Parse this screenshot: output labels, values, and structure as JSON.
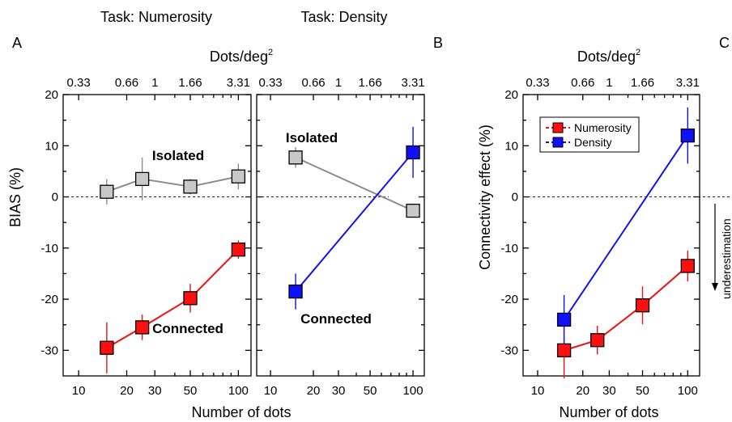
{
  "task_titles": [
    {
      "text": "Task: Numerosity",
      "color": "#ee1111"
    },
    {
      "text": "Task: Density",
      "color": "#1111ee"
    }
  ],
  "panel_letters": [
    "A",
    "B",
    "C"
  ],
  "top_axis_title": "Dots/deg",
  "top_axis_title_sup": "2",
  "top_ticks": [
    {
      "label": "0.33",
      "x": 10
    },
    {
      "label": "0.66",
      "x": 20
    },
    {
      "label": "1",
      "x": 30
    },
    {
      "label": "1.66",
      "x": 50
    },
    {
      "label": "3.31",
      "x": 100
    }
  ],
  "bottom_ticks": [
    {
      "label": "10",
      "x": 10
    },
    {
      "label": "20",
      "x": 20
    },
    {
      "label": "30",
      "x": 30
    },
    {
      "label": "50",
      "x": 50
    },
    {
      "label": "100",
      "x": 100
    }
  ],
  "y_ticks": [
    "20",
    "10",
    "0",
    "-10",
    "-20",
    "-30"
  ],
  "annotation_side": "underestimation",
  "chart_data": [
    {
      "type": "line",
      "panel": "A-left",
      "xscale": "log",
      "xlim": [
        8,
        120
      ],
      "ylim": [
        -35,
        20
      ],
      "ylabel": "BIAS (%)",
      "xlabel": "Number of dots",
      "series": [
        {
          "name": "Isolated",
          "color": "#8c8c8c",
          "fill": "#c8c8c8",
          "x": [
            15,
            25,
            50,
            100
          ],
          "y": [
            1,
            3.5,
            2,
            4
          ],
          "err": [
            2.5,
            4.2,
            1.5,
            2.5
          ]
        },
        {
          "name": "Connected",
          "color": "#ee1111",
          "fill": "#ff1010",
          "x": [
            15,
            25,
            50,
            100
          ],
          "y": [
            -29.5,
            -25.5,
            -19.8,
            -10.3
          ],
          "err": [
            5,
            2.5,
            2.8,
            1.8
          ]
        }
      ]
    },
    {
      "type": "line",
      "panel": "A-right",
      "xscale": "log",
      "xlim": [
        8,
        120
      ],
      "ylim": [
        -35,
        20
      ],
      "xlabel": "Number of dots",
      "series": [
        {
          "name": "Isolated",
          "color": "#8c8c8c",
          "fill": "#c8c8c8",
          "x": [
            15,
            100
          ],
          "y": [
            7.7,
            -2.7
          ],
          "err": [
            2,
            1.2
          ]
        },
        {
          "name": "Connected",
          "color": "#1111ee",
          "fill": "#1010ff",
          "x": [
            15,
            100
          ],
          "y": [
            -18.5,
            8.7
          ],
          "err": [
            3.5,
            5
          ]
        }
      ]
    },
    {
      "type": "line",
      "panel": "B",
      "xscale": "log",
      "xlim": [
        8,
        120
      ],
      "ylim": [
        -35,
        20
      ],
      "ylabel": "Connectivity effect (%)",
      "xlabel": "Number of dots",
      "legend": "top-left",
      "series": [
        {
          "name": "Numerosity",
          "color": "#ee1111",
          "fill": "#ff1010",
          "x": [
            15,
            25,
            50,
            100
          ],
          "y": [
            -30,
            -28,
            -21.2,
            -13.5
          ],
          "err": [
            5.5,
            2.8,
            3.7,
            3
          ]
        },
        {
          "name": "Density",
          "color": "#1111ee",
          "fill": "#1010ff",
          "x": [
            15,
            100
          ],
          "y": [
            -24,
            12
          ],
          "err": [
            4.8,
            5.5
          ]
        }
      ]
    }
  ]
}
